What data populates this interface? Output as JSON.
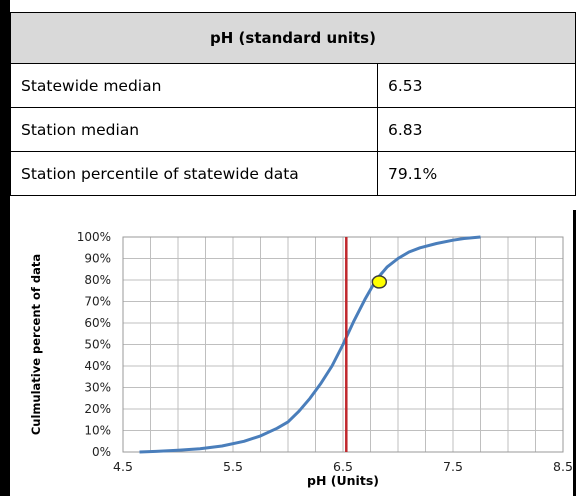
{
  "table": {
    "header": "pH (standard units)",
    "rows": [
      {
        "label": "Statewide median",
        "value": "6.53"
      },
      {
        "label": "Station median",
        "value": "6.83"
      },
      {
        "label": "Station percentile of statewide data",
        "value": "79.1%"
      }
    ]
  },
  "chart_data": {
    "type": "line",
    "title": "",
    "xlabel": "pH (Units)",
    "ylabel": "Culmulative percent of data",
    "xlim": [
      4.5,
      8.5
    ],
    "ylim": [
      0,
      100
    ],
    "x_ticks": [
      "4.5",
      "5.5",
      "6.5",
      "7.5",
      "8.5"
    ],
    "y_ticks": [
      "0%",
      "10%",
      "20%",
      "30%",
      "40%",
      "50%",
      "60%",
      "70%",
      "80%",
      "90%",
      "100%"
    ],
    "grid": true,
    "series": [
      {
        "color": "#4a7ebb",
        "x": [
          4.65,
          4.8,
          5.0,
          5.2,
          5.4,
          5.6,
          5.75,
          5.9,
          6.0,
          6.1,
          6.2,
          6.3,
          6.4,
          6.5,
          6.6,
          6.7,
          6.8,
          6.9,
          7.0,
          7.1,
          7.2,
          7.35,
          7.5,
          7.6,
          7.75
        ],
        "y": [
          0,
          0.3,
          0.8,
          1.5,
          2.8,
          5,
          7.5,
          11,
          14,
          19,
          25,
          32,
          40,
          50,
          61,
          71,
          80,
          86,
          90,
          93,
          95,
          97,
          98.5,
          99.3,
          100
        ]
      }
    ],
    "reference_line": {
      "x": 6.53,
      "color": "#c0282d"
    },
    "marker": {
      "x": 6.83,
      "y": 79.1,
      "color": "#ffff00"
    }
  }
}
